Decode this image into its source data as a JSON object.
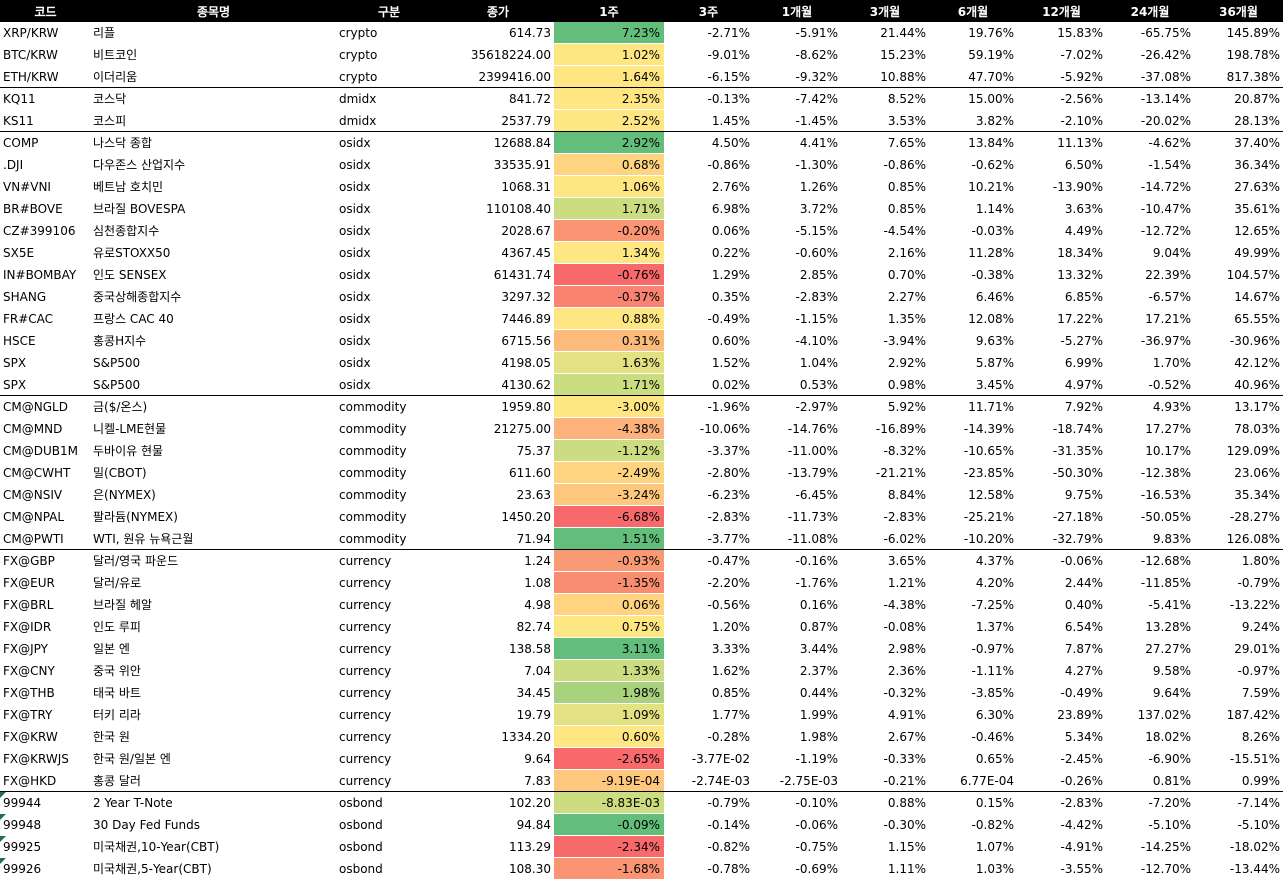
{
  "headers": [
    "코드",
    "종목명",
    "구분",
    "종가",
    "1주",
    "3주",
    "1개월",
    "3개월",
    "6개월",
    "12개월",
    "24개월",
    "36개월"
  ],
  "rows": [
    {
      "code": "XRP/KRW",
      "name": "리플",
      "cat": "crypto",
      "close": "614.73",
      "w1": "7.23%",
      "w1_color": "#63be7b",
      "w3": "-2.71%",
      "m1": "-5.91%",
      "m3": "21.44%",
      "m6": "19.76%",
      "m12": "15.83%",
      "m24": "-65.75%",
      "m36": "145.89%"
    },
    {
      "code": "BTC/KRW",
      "name": "비트코인",
      "cat": "crypto",
      "close": "35618224.00",
      "w1": "1.02%",
      "w1_color": "#fee683",
      "w3": "-9.01%",
      "m1": "-8.62%",
      "m3": "15.23%",
      "m6": "59.19%",
      "m12": "-7.02%",
      "m24": "-26.42%",
      "m36": "198.78%"
    },
    {
      "code": "ETH/KRW",
      "name": "이더리움",
      "cat": "crypto",
      "close": "2399416.00",
      "w1": "1.64%",
      "w1_color": "#fee683",
      "w3": "-6.15%",
      "m1": "-9.32%",
      "m3": "10.88%",
      "m6": "47.70%",
      "m12": "-5.92%",
      "m24": "-37.08%",
      "m36": "817.38%",
      "group_end": true
    },
    {
      "code": "KQ11",
      "name": "코스닥",
      "cat": "dmidx",
      "close": "841.72",
      "w1": "2.35%",
      "w1_color": "#fee683",
      "w3": "-0.13%",
      "m1": "-7.42%",
      "m3": "8.52%",
      "m6": "15.00%",
      "m12": "-2.56%",
      "m24": "-13.14%",
      "m36": "20.87%"
    },
    {
      "code": "KS11",
      "name": "코스피",
      "cat": "dmidx",
      "close": "2537.79",
      "w1": "2.52%",
      "w1_color": "#fee683",
      "w3": "1.45%",
      "m1": "-1.45%",
      "m3": "3.53%",
      "m6": "3.82%",
      "m12": "-2.10%",
      "m24": "-20.02%",
      "m36": "28.13%",
      "group_end": true
    },
    {
      "code": "COMP",
      "name": "나스닥 종합",
      "cat": "osidx",
      "close": "12688.84",
      "w1": "2.92%",
      "w1_color": "#63be7b",
      "w3": "4.50%",
      "m1": "4.41%",
      "m3": "7.65%",
      "m6": "13.84%",
      "m12": "11.13%",
      "m24": "-4.62%",
      "m36": "37.40%"
    },
    {
      "code": ".DJI",
      "name": "다우존스 산업지수",
      "cat": "osidx",
      "close": "33535.91",
      "w1": "0.68%",
      "w1_color": "#fed480",
      "w3": "-0.86%",
      "m1": "-1.30%",
      "m3": "-0.86%",
      "m6": "-0.62%",
      "m12": "6.50%",
      "m24": "-1.54%",
      "m36": "36.34%"
    },
    {
      "code": "VN#VNI",
      "name": "베트남 호치민",
      "cat": "osidx",
      "close": "1068.31",
      "w1": "1.06%",
      "w1_color": "#fee683",
      "w3": "2.76%",
      "m1": "1.26%",
      "m3": "0.85%",
      "m6": "10.21%",
      "m12": "-13.90%",
      "m24": "-14.72%",
      "m36": "27.63%"
    },
    {
      "code": "BR#BOVE",
      "name": "브라질 BOVESPA",
      "cat": "osidx",
      "close": "110108.40",
      "w1": "1.71%",
      "w1_color": "#cbdc81",
      "w3": "6.98%",
      "m1": "3.72%",
      "m3": "0.85%",
      "m6": "1.14%",
      "m12": "3.63%",
      "m24": "-10.47%",
      "m36": "35.61%"
    },
    {
      "code": "CZ#399106",
      "name": "심천종합지수",
      "cat": "osidx",
      "close": "2028.67",
      "w1": "-0.20%",
      "w1_color": "#fa9473",
      "w3": "0.06%",
      "m1": "-5.15%",
      "m3": "-4.54%",
      "m6": "-0.03%",
      "m12": "4.49%",
      "m24": "-12.72%",
      "m36": "12.65%"
    },
    {
      "code": "SX5E",
      "name": "유로STOXX50",
      "cat": "osidx",
      "close": "4367.45",
      "w1": "1.34%",
      "w1_color": "#fee683",
      "w3": "0.22%",
      "m1": "-0.60%",
      "m3": "2.16%",
      "m6": "11.28%",
      "m12": "18.34%",
      "m24": "9.04%",
      "m36": "49.99%"
    },
    {
      "code": "IN#BOMBAY",
      "name": "인도 SENSEX",
      "cat": "osidx",
      "close": "61431.74",
      "w1": "-0.76%",
      "w1_color": "#f8696b",
      "w3": "1.29%",
      "m1": "2.85%",
      "m3": "0.70%",
      "m6": "-0.38%",
      "m12": "13.32%",
      "m24": "22.39%",
      "m36": "104.57%"
    },
    {
      "code": "SHANG",
      "name": "중국상해종합지수",
      "cat": "osidx",
      "close": "3297.32",
      "w1": "-0.37%",
      "w1_color": "#f98370",
      "w3": "0.35%",
      "m1": "-2.83%",
      "m3": "2.27%",
      "m6": "6.46%",
      "m12": "6.85%",
      "m24": "-6.57%",
      "m36": "14.67%"
    },
    {
      "code": "FR#CAC",
      "name": "프랑스 CAC 40",
      "cat": "osidx",
      "close": "7446.89",
      "w1": "0.88%",
      "w1_color": "#fee683",
      "w3": "-0.49%",
      "m1": "-1.15%",
      "m3": "1.35%",
      "m6": "12.08%",
      "m12": "17.22%",
      "m24": "17.21%",
      "m36": "65.55%"
    },
    {
      "code": "HSCE",
      "name": "홍콩H지수",
      "cat": "osidx",
      "close": "6715.56",
      "w1": "0.31%",
      "w1_color": "#fcbb7b",
      "w3": "0.60%",
      "m1": "-4.10%",
      "m3": "-3.94%",
      "m6": "9.63%",
      "m12": "-5.27%",
      "m24": "-36.97%",
      "m36": "-30.96%"
    },
    {
      "code": "SPX",
      "name": "S&P500",
      "cat": "osidx",
      "close": "4198.05",
      "w1": "1.63%",
      "w1_color": "#e3e282",
      "w3": "1.52%",
      "m1": "1.04%",
      "m3": "2.92%",
      "m6": "5.87%",
      "m12": "6.99%",
      "m24": "1.70%",
      "m36": "42.12%"
    },
    {
      "code": "SPX",
      "name": "S&P500",
      "cat": "osidx",
      "close": "4130.62",
      "w1": "1.71%",
      "w1_color": "#cbdc81",
      "w3": "0.02%",
      "m1": "0.53%",
      "m3": "0.98%",
      "m6": "3.45%",
      "m12": "4.97%",
      "m24": "-0.52%",
      "m36": "40.96%",
      "group_end": true
    },
    {
      "code": "CM@NGLD",
      "name": "금($/온스)",
      "cat": "commodity",
      "close": "1959.80",
      "w1": "-3.00%",
      "w1_color": "#fee683",
      "w3": "-1.96%",
      "m1": "-2.97%",
      "m3": "5.92%",
      "m6": "11.71%",
      "m12": "7.92%",
      "m24": "4.93%",
      "m36": "13.17%"
    },
    {
      "code": "CM@MND",
      "name": "니켈-LME현물",
      "cat": "commodity",
      "close": "21275.00",
      "w1": "-4.38%",
      "w1_color": "#fcb27a",
      "w3": "-10.06%",
      "m1": "-14.76%",
      "m3": "-16.89%",
      "m6": "-14.39%",
      "m12": "-18.74%",
      "m24": "17.27%",
      "m36": "78.03%"
    },
    {
      "code": "CM@DUB1M",
      "name": "두바이유 현물",
      "cat": "commodity",
      "close": "75.37",
      "w1": "-1.12%",
      "w1_color": "#cbdc81",
      "w3": "-3.37%",
      "m1": "-11.00%",
      "m3": "-8.32%",
      "m6": "-10.65%",
      "m12": "-31.35%",
      "m24": "10.17%",
      "m36": "129.09%"
    },
    {
      "code": "CM@CWHT",
      "name": "밀(CBOT)",
      "cat": "commodity",
      "close": "611.60",
      "w1": "-2.49%",
      "w1_color": "#fed480",
      "w3": "-2.80%",
      "m1": "-13.79%",
      "m3": "-21.21%",
      "m6": "-23.85%",
      "m12": "-50.30%",
      "m24": "-12.38%",
      "m36": "23.06%"
    },
    {
      "code": "CM@NSIV",
      "name": "은(NYMEX)",
      "cat": "commodity",
      "close": "23.63",
      "w1": "-3.24%",
      "w1_color": "#fdc87d",
      "w3": "-6.23%",
      "m1": "-6.45%",
      "m3": "8.84%",
      "m6": "12.58%",
      "m12": "9.75%",
      "m24": "-16.53%",
      "m36": "35.34%"
    },
    {
      "code": "CM@NPAL",
      "name": "팔라듐(NYMEX)",
      "cat": "commodity",
      "close": "1450.20",
      "w1": "-6.68%",
      "w1_color": "#f8696b",
      "w3": "-2.83%",
      "m1": "-11.73%",
      "m3": "-2.83%",
      "m6": "-25.21%",
      "m12": "-27.18%",
      "m24": "-50.05%",
      "m36": "-28.27%"
    },
    {
      "code": "CM@PWTI",
      "name": "WTI, 원유 뉴욕근월",
      "cat": "commodity",
      "close": "71.94",
      "w1": "1.51%",
      "w1_color": "#63be7b",
      "w3": "-3.77%",
      "m1": "-11.08%",
      "m3": "-6.02%",
      "m6": "-10.20%",
      "m12": "-32.79%",
      "m24": "9.83%",
      "m36": "126.08%",
      "group_end": true
    },
    {
      "code": "FX@GBP",
      "name": "달러/영국 파운드",
      "cat": "currency",
      "close": "1.24",
      "w1": "-0.93%",
      "w1_color": "#fa9a74",
      "w3": "-0.47%",
      "m1": "-0.16%",
      "m3": "3.65%",
      "m6": "4.37%",
      "m12": "-0.06%",
      "m24": "-12.68%",
      "m36": "1.80%"
    },
    {
      "code": "FX@EUR",
      "name": "달러/유로",
      "cat": "currency",
      "close": "1.08",
      "w1": "-1.35%",
      "w1_color": "#f98d71",
      "w3": "-2.20%",
      "m1": "-1.76%",
      "m3": "1.21%",
      "m6": "4.20%",
      "m12": "2.44%",
      "m24": "-11.85%",
      "m36": "-0.79%"
    },
    {
      "code": "FX@BRL",
      "name": "브라질 헤알",
      "cat": "currency",
      "close": "4.98",
      "w1": "0.06%",
      "w1_color": "#fed480",
      "w3": "-0.56%",
      "m1": "0.16%",
      "m3": "-4.38%",
      "m6": "-7.25%",
      "m12": "0.40%",
      "m24": "-5.41%",
      "m36": "-13.22%"
    },
    {
      "code": "FX@IDR",
      "name": "인도 루피",
      "cat": "currency",
      "close": "82.74",
      "w1": "0.75%",
      "w1_color": "#fee683",
      "w3": "1.20%",
      "m1": "0.87%",
      "m3": "-0.08%",
      "m6": "1.37%",
      "m12": "6.54%",
      "m24": "13.28%",
      "m36": "9.24%"
    },
    {
      "code": "FX@JPY",
      "name": "일본 엔",
      "cat": "currency",
      "close": "138.58",
      "w1": "3.11%",
      "w1_color": "#63be7b",
      "w3": "3.33%",
      "m1": "3.44%",
      "m3": "2.98%",
      "m6": "-0.97%",
      "m12": "7.87%",
      "m24": "27.27%",
      "m36": "29.01%"
    },
    {
      "code": "FX@CNY",
      "name": "중국 위안",
      "cat": "currency",
      "close": "7.04",
      "w1": "1.33%",
      "w1_color": "#cbdc81",
      "w3": "1.62%",
      "m1": "2.37%",
      "m3": "2.36%",
      "m6": "-1.11%",
      "m12": "4.27%",
      "m24": "9.58%",
      "m36": "-0.97%"
    },
    {
      "code": "FX@THB",
      "name": "태국 바트",
      "cat": "currency",
      "close": "34.45",
      "w1": "1.98%",
      "w1_color": "#a9d27f",
      "w3": "0.85%",
      "m1": "0.44%",
      "m3": "-0.32%",
      "m6": "-3.85%",
      "m12": "-0.49%",
      "m24": "9.64%",
      "m36": "7.59%"
    },
    {
      "code": "FX@TRY",
      "name": "터키 리라",
      "cat": "currency",
      "close": "19.79",
      "w1": "1.09%",
      "w1_color": "#e3e282",
      "w3": "1.77%",
      "m1": "1.99%",
      "m3": "4.91%",
      "m6": "6.30%",
      "m12": "23.89%",
      "m24": "137.02%",
      "m36": "187.42%"
    },
    {
      "code": "FX@KRW",
      "name": "한국 원",
      "cat": "currency",
      "close": "1334.20",
      "w1": "0.60%",
      "w1_color": "#fee683",
      "w3": "-0.28%",
      "m1": "1.98%",
      "m3": "2.67%",
      "m6": "-0.46%",
      "m12": "5.34%",
      "m24": "18.02%",
      "m36": "8.26%"
    },
    {
      "code": "FX@KRWJS",
      "name": "한국 원/일본 엔",
      "cat": "currency",
      "close": "9.64",
      "w1": "-2.65%",
      "w1_color": "#f8696b",
      "w3": "-3.77E-02",
      "m1": "-1.19%",
      "m3": "-0.33%",
      "m6": "0.65%",
      "m12": "-2.45%",
      "m24": "-6.90%",
      "m36": "-15.51%"
    },
    {
      "code": "FX@HKD",
      "name": "홍콩 달러",
      "cat": "currency",
      "close": "7.83",
      "w1": "-9.19E-04",
      "w1_color": "#fdc87d",
      "w3": "-2.74E-03",
      "m1": "-2.75E-03",
      "m3": "-0.21%",
      "m6": "6.77E-04",
      "m12": "-0.26%",
      "m24": "0.81%",
      "m36": "0.99%",
      "group_end": true
    },
    {
      "code": "99944",
      "name": "2 Year T-Note",
      "cat": "osbond",
      "close": "102.20",
      "w1": "-8.83E-03",
      "w1_color": "#cbdc81",
      "w3": "-0.79%",
      "m1": "-0.10%",
      "m3": "0.88%",
      "m6": "0.15%",
      "m12": "-2.83%",
      "m24": "-7.20%",
      "m36": "-7.14%",
      "tri": true
    },
    {
      "code": "99948",
      "name": "30 Day Fed Funds",
      "cat": "osbond",
      "close": "94.84",
      "w1": "-0.09%",
      "w1_color": "#63be7b",
      "w3": "-0.14%",
      "m1": "-0.06%",
      "m3": "-0.30%",
      "m6": "-0.82%",
      "m12": "-4.42%",
      "m24": "-5.10%",
      "m36": "-5.10%",
      "tri": true
    },
    {
      "code": "99925",
      "name": "미국채권,10-Year(CBT)",
      "cat": "osbond",
      "close": "113.29",
      "w1": "-2.34%",
      "w1_color": "#f8696b",
      "w3": "-0.82%",
      "m1": "-0.75%",
      "m3": "1.15%",
      "m6": "1.07%",
      "m12": "-4.91%",
      "m24": "-14.25%",
      "m36": "-18.02%",
      "tri": true
    },
    {
      "code": "99926",
      "name": "미국채권,5-Year(CBT)",
      "cat": "osbond",
      "close": "108.30",
      "w1": "-1.68%",
      "w1_color": "#fa9473",
      "w3": "-0.78%",
      "m1": "-0.69%",
      "m3": "1.11%",
      "m6": "1.03%",
      "m12": "-3.55%",
      "m24": "-12.70%",
      "m36": "-13.44%",
      "tri": true
    }
  ]
}
